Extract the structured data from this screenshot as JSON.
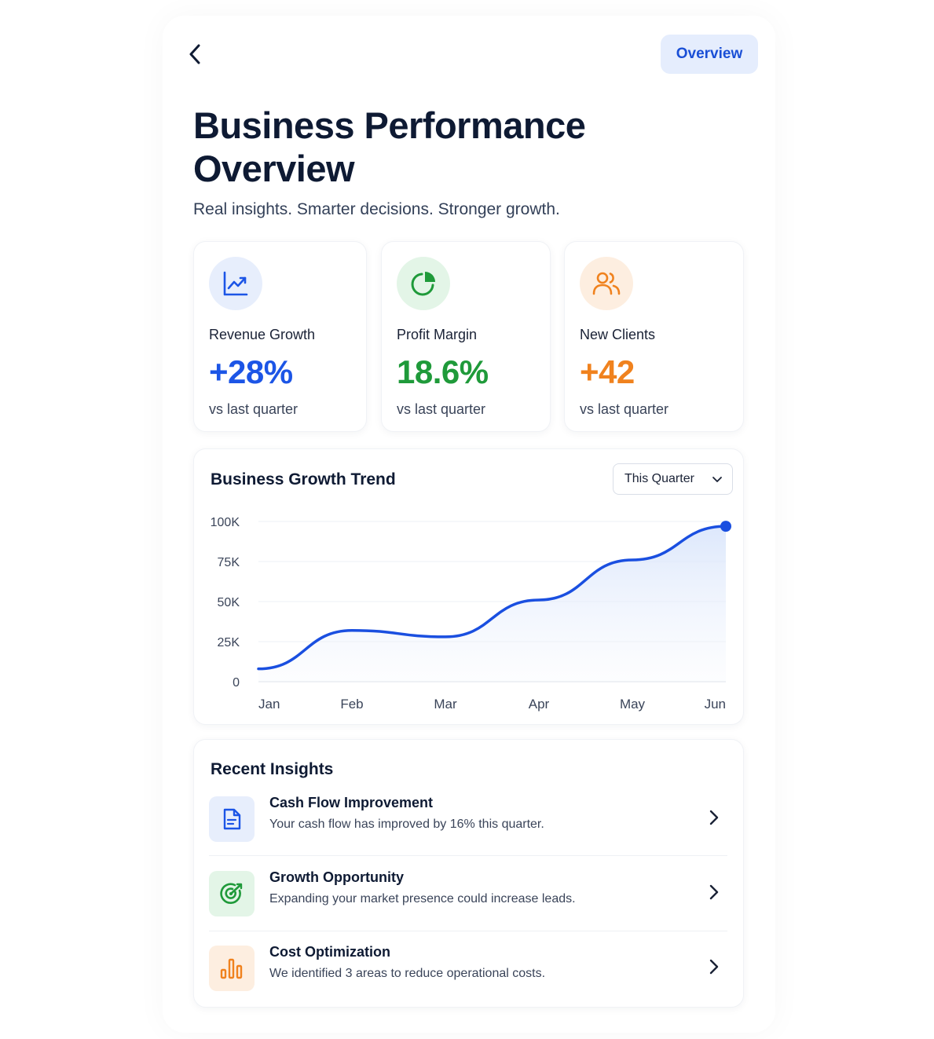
{
  "header": {
    "back_icon": "chevron-left-icon",
    "overview_label": "Overview"
  },
  "title": "Business Performance Overview",
  "subtitle": "Real insights. Smarter decisions. Stronger growth.",
  "metrics": [
    {
      "icon": "trending-up-icon",
      "label": "Revenue Growth",
      "value": "+28%",
      "sub": "vs last quarter",
      "color": "#1c55e6",
      "bg": "#e7eefc"
    },
    {
      "icon": "pie-chart-icon",
      "label": "Profit Margin",
      "value": "18.6%",
      "sub": "vs last quarter",
      "color": "#1f9a3a",
      "bg": "#e3f5e7"
    },
    {
      "icon": "users-icon",
      "label": "New Clients",
      "value": "+42",
      "sub": "vs last quarter",
      "color": "#f0821e",
      "bg": "#fdeee0"
    }
  ],
  "chart": {
    "title": "Business Growth Trend",
    "range_select": "This Quarter"
  },
  "chart_data": {
    "type": "area",
    "title": "Business Growth Trend",
    "categories": [
      "Jan",
      "Feb",
      "Mar",
      "Apr",
      "May",
      "Jun"
    ],
    "values": [
      8000,
      32000,
      28000,
      51000,
      76000,
      97000
    ],
    "y_ticks": [
      "0",
      "25K",
      "50K",
      "75K",
      "100K"
    ],
    "ylim": [
      0,
      100000
    ],
    "grid": true,
    "line_color": "#1a4fe0"
  },
  "insights": {
    "title": "Recent Insights",
    "items": [
      {
        "icon": "document-icon",
        "title": "Cash Flow Improvement",
        "desc": "Your cash flow has improved by 16% this quarter.",
        "color": "#1c55e6",
        "bg": "#e7eefc"
      },
      {
        "icon": "target-icon",
        "title": "Growth Opportunity",
        "desc": "Expanding your market presence could increase leads.",
        "color": "#1f9a3a",
        "bg": "#e3f5e7"
      },
      {
        "icon": "bar-chart-icon",
        "title": "Cost Optimization",
        "desc": "We identified 3 areas to reduce operational costs.",
        "color": "#f0821e",
        "bg": "#fdeee0"
      }
    ]
  }
}
